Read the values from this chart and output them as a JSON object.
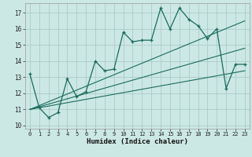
{
  "xlabel": "Humidex (Indice chaleur)",
  "bg_color": "#cce8e4",
  "grid_color": "#aaccc8",
  "line_color": "#1a6b5e",
  "xlim": [
    -0.5,
    23.5
  ],
  "ylim": [
    9.8,
    17.6
  ],
  "yticks": [
    10,
    11,
    12,
    13,
    14,
    15,
    16,
    17
  ],
  "xticks": [
    0,
    1,
    2,
    3,
    4,
    5,
    6,
    7,
    8,
    9,
    10,
    11,
    12,
    13,
    14,
    15,
    16,
    17,
    18,
    19,
    20,
    21,
    22,
    23
  ],
  "main_x": [
    0,
    1,
    2,
    3,
    4,
    5,
    6,
    7,
    8,
    9,
    10,
    11,
    12,
    13,
    14,
    15,
    16,
    17,
    18,
    19,
    20,
    21,
    22,
    23
  ],
  "main_y": [
    13.2,
    11.1,
    10.5,
    10.8,
    12.9,
    11.8,
    12.1,
    14.0,
    13.4,
    13.5,
    15.8,
    15.2,
    15.3,
    15.3,
    17.3,
    16.0,
    17.3,
    16.6,
    16.2,
    15.4,
    16.0,
    12.3,
    13.8,
    13.8
  ],
  "trend1_x": [
    0,
    23
  ],
  "trend1_y": [
    11.0,
    13.4
  ],
  "trend2_x": [
    0,
    23
  ],
  "trend2_y": [
    11.0,
    14.8
  ],
  "trend3_x": [
    0,
    23
  ],
  "trend3_y": [
    11.0,
    16.5
  ]
}
